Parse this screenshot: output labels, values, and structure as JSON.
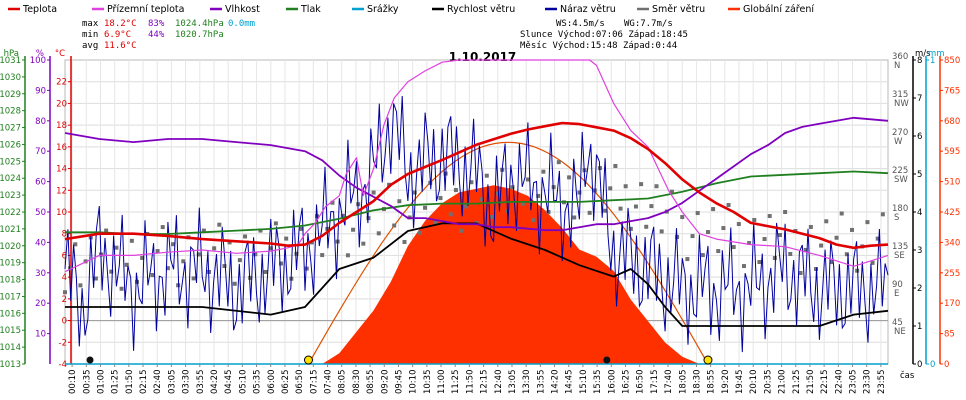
{
  "colors": {
    "temperature": "#e00000",
    "feels_like": "#e040e0",
    "humidity": "#8000c0",
    "pressure": "#208020",
    "rain": "#00a0d0",
    "wind_speed": "#000000",
    "wind_gust": "#0000a0",
    "wind_dir": "#707070",
    "solar": "#ff3000",
    "solar_curve": "#e05000"
  },
  "legend": [
    {
      "label": "Teplota",
      "color": "#e00000"
    },
    {
      "label": "Přízemní teplota",
      "color": "#e040e0"
    },
    {
      "label": "Vlhkost",
      "color": "#8000c0"
    },
    {
      "label": "Tlak",
      "color": "#208020"
    },
    {
      "label": "Srážky",
      "color": "#00a0d0"
    },
    {
      "label": "Rychlost větru",
      "color": "#000000"
    },
    {
      "label": "Náraz větru",
      "color": "#0000a0"
    },
    {
      "label": "Směr větru",
      "color": "#707070"
    },
    {
      "label": "Globální záření",
      "color": "#ff3000"
    }
  ],
  "stats": {
    "max_label": "max",
    "max_temp": "18.2°C",
    "max_hum": "83%",
    "max_press": "1024.4hPa",
    "rain_total": "0.0mm",
    "min_label": "min",
    "min_temp": "6.9°C",
    "min_hum": "44%",
    "min_press": "1020.7hPa",
    "avg_label": "avg",
    "avg_temp": "11.6°C"
  },
  "wind_info": {
    "ws": "WS:4.5m/s",
    "wg": "WG:7.7m/s"
  },
  "sun_info": "Slunce Východ:07:06  Západ:18:45",
  "moon_info": "Měsíc  Východ:15:48  Západ:0:44",
  "chart_data": {
    "type": "line",
    "title": "1.10.2017",
    "xlabel": "čas",
    "x_ticks": [
      "00:10",
      "00:35",
      "01:00",
      "01:25",
      "01:50",
      "02:15",
      "02:40",
      "03:05",
      "03:30",
      "03:55",
      "04:20",
      "04:45",
      "05:10",
      "05:35",
      "06:00",
      "06:25",
      "06:50",
      "07:15",
      "07:40",
      "08:05",
      "08:30",
      "08:55",
      "09:20",
      "09:45",
      "10:10",
      "10:35",
      "11:00",
      "11:25",
      "11:50",
      "12:15",
      "12:40",
      "13:05",
      "13:30",
      "13:55",
      "14:20",
      "14:45",
      "15:10",
      "15:35",
      "16:00",
      "16:25",
      "16:50",
      "17:15",
      "17:40",
      "18:05",
      "18:30",
      "18:55",
      "19:20",
      "19:45",
      "20:10",
      "20:35",
      "21:00",
      "21:25",
      "21:50",
      "22:15",
      "22:40",
      "23:05",
      "23:30",
      "23:55"
    ],
    "axes": {
      "pressure_hpa": {
        "label": "hPa",
        "min": 1013,
        "max": 1031,
        "ticks": [
          1013,
          1014,
          1015,
          1016,
          1017,
          1018,
          1019,
          1020,
          1021,
          1022,
          1023,
          1024,
          1025,
          1026,
          1027,
          1028,
          1029,
          1030,
          1031
        ]
      },
      "humidity_pct": {
        "label": "%",
        "min": 0,
        "max": 100,
        "ticks": [
          10,
          20,
          30,
          40,
          50,
          60,
          70,
          80,
          90,
          100
        ]
      },
      "temperature_c": {
        "label": "°C",
        "min": -4,
        "max": 24,
        "ticks": [
          -4,
          -2,
          0,
          2,
          4,
          6,
          8,
          10,
          12,
          14,
          16,
          18,
          20,
          22
        ]
      },
      "wind_dir": {
        "ticks": [
          {
            "v": 45,
            "t": "NE"
          },
          {
            "v": 90,
            "t": "E"
          },
          {
            "v": 135,
            "t": "SE"
          },
          {
            "v": 180,
            "t": "S"
          },
          {
            "v": 225,
            "t": "SW"
          },
          {
            "v": 270,
            "t": "W"
          },
          {
            "v": 315,
            "t": "NW"
          },
          {
            "v": 360,
            "t": "N"
          }
        ]
      },
      "wind_speed_ms": {
        "label": "m/s",
        "min": 0,
        "max": 8,
        "ticks": [
          0,
          1,
          2,
          3,
          4,
          5,
          6,
          7,
          8
        ]
      },
      "rain_mm": {
        "label": "mm",
        "min": 0,
        "max": 1,
        "ticks": [
          0,
          1
        ]
      },
      "solar_wm2": {
        "min": 0,
        "max": 850,
        "ticks": [
          0,
          85,
          170,
          255,
          340,
          425,
          510,
          595,
          680,
          765,
          850
        ]
      }
    },
    "series": [
      {
        "name": "Teplota",
        "unit": "°C",
        "x": [
          0,
          1,
          2,
          3,
          4,
          5,
          6,
          6.5,
          7,
          7.5,
          8,
          8.5,
          9,
          9.5,
          10,
          11,
          11.5,
          12,
          12.5,
          13,
          13.5,
          14,
          14.5,
          15,
          15.5,
          16,
          16.5,
          17,
          17.5,
          18,
          18.5,
          19,
          19.5,
          20,
          21,
          22,
          22.5,
          23,
          23.5,
          24
        ],
        "y": [
          7.5,
          8,
          8,
          7.8,
          7.5,
          7.3,
          7.1,
          6.9,
          7,
          7.8,
          9,
          10,
          11,
          12.5,
          13.5,
          14.8,
          15.5,
          16.2,
          16.7,
          17.2,
          17.6,
          17.9,
          18.2,
          18.1,
          17.8,
          17.5,
          16.8,
          15.8,
          14.5,
          13,
          11.8,
          10.8,
          10,
          9,
          8.4,
          7.6,
          7,
          6.7,
          6.9,
          7
        ]
      },
      {
        "name": "Přízemní teplota",
        "unit": "°C",
        "x": [
          0,
          1,
          2,
          3,
          4,
          5,
          6,
          6.5,
          6.8,
          7,
          7.3,
          7.6,
          8,
          8.2,
          8.5,
          8.7,
          9,
          9.3,
          9.6,
          10,
          10.5,
          11,
          11.5,
          12,
          14,
          15,
          15.3,
          15.5,
          16,
          16.5,
          17,
          17.3,
          17.6,
          18,
          18.5,
          19,
          20,
          21,
          22,
          23,
          24
        ],
        "y": [
          4.5,
          6,
          6,
          6.3,
          6.5,
          6.2,
          6.4,
          6.7,
          7,
          8,
          9,
          10.5,
          11.5,
          13.5,
          15,
          11.5,
          14,
          18,
          20.5,
          22,
          23,
          23.8,
          24,
          24,
          24,
          24,
          24,
          23.5,
          20,
          17.5,
          16,
          14,
          12,
          10,
          8,
          7.5,
          7,
          6.8,
          6,
          5,
          6
        ]
      },
      {
        "name": "Vlhkost",
        "unit": "%",
        "x": [
          0,
          1,
          2,
          3,
          4,
          5,
          6,
          7,
          7.5,
          8,
          8.5,
          9,
          9.5,
          10,
          10.5,
          11,
          11.5,
          12,
          12.5,
          13,
          14,
          14.5,
          15,
          15.5,
          16,
          16.5,
          17,
          17.5,
          18,
          18.5,
          19,
          19.5,
          20,
          20.5,
          21,
          21.5,
          22,
          23,
          24
        ],
        "y": [
          76,
          74,
          73,
          74,
          74,
          73,
          72,
          70,
          67,
          62,
          58,
          55,
          52,
          48,
          48,
          47,
          46,
          46,
          45,
          45,
          44,
          44,
          45,
          46,
          46,
          47,
          48,
          50,
          53,
          57,
          61,
          65,
          69,
          72,
          76,
          78,
          79,
          81,
          80
        ]
      },
      {
        "name": "Tlak",
        "unit": "hPa",
        "x": [
          0,
          1,
          2,
          3,
          4,
          5,
          6,
          7,
          8,
          9,
          10,
          11,
          12,
          13,
          14,
          15,
          16,
          17,
          18,
          19,
          20,
          21,
          22,
          23,
          24
        ],
        "y": [
          1020.8,
          1020.8,
          1020.7,
          1020.7,
          1020.8,
          1020.9,
          1021.0,
          1021.2,
          1021.6,
          1022.1,
          1022.4,
          1022.5,
          1022.5,
          1022.6,
          1022.6,
          1022.6,
          1022.7,
          1022.8,
          1023.2,
          1023.7,
          1024.1,
          1024.2,
          1024.3,
          1024.4,
          1024.3
        ]
      },
      {
        "name": "Srážky",
        "unit": "mm",
        "x": [
          0,
          24
        ],
        "y": [
          0,
          0
        ]
      },
      {
        "name": "Rychlost větru",
        "unit": "m/s",
        "x": [
          0,
          2,
          4,
          6,
          7,
          7.5,
          8,
          9,
          10,
          11,
          12,
          13,
          14,
          15,
          16,
          16.5,
          17,
          17.5,
          18,
          19,
          20,
          21,
          22,
          23,
          24
        ],
        "y": [
          1.5,
          1.5,
          1.5,
          1.3,
          1.5,
          2,
          2.5,
          2.8,
          3.5,
          3.7,
          3.7,
          3.3,
          3,
          2.6,
          2.3,
          2.5,
          2.1,
          1.5,
          1,
          1,
          1,
          1,
          1,
          1.3,
          1.4
        ]
      },
      {
        "name": "Náraz větru",
        "unit": "m/s",
        "x": [
          0,
          0.5,
          1,
          2,
          3,
          4,
          5,
          6,
          7,
          8,
          9,
          9.5,
          10,
          11,
          12,
          12.5,
          13,
          14,
          15,
          15.2,
          16,
          17,
          18,
          19,
          20,
          21,
          22,
          23,
          24
        ],
        "y": [
          2.5,
          1.5,
          3,
          2,
          2.5,
          2.5,
          2,
          2.5,
          3,
          4,
          5,
          6.5,
          5,
          5.5,
          5,
          4,
          5,
          4.5,
          4,
          6,
          3,
          2.5,
          2,
          2,
          2,
          2.5,
          2,
          2,
          2
        ]
      },
      {
        "name": "Směr větru",
        "unit": "°",
        "x": [
          0,
          2,
          4,
          6,
          7,
          8,
          9,
          10,
          11,
          12,
          13,
          14,
          15,
          16,
          17,
          18,
          19,
          20,
          21,
          22,
          23,
          24
        ],
        "y": [
          120,
          125,
          130,
          130,
          140,
          160,
          175,
          180,
          190,
          195,
          195,
          200,
          210,
          200,
          190,
          160,
          155,
          150,
          145,
          140,
          145,
          150
        ]
      },
      {
        "name": "Globální záření",
        "unit": "W/m2",
        "x": [
          7.5,
          8,
          8.5,
          9,
          9.5,
          10,
          10.5,
          11,
          11.5,
          12,
          12.5,
          13,
          13.5,
          14,
          14.5,
          15,
          15.5,
          16,
          16.5,
          17,
          17.5,
          18,
          18.5
        ],
        "y": [
          0,
          30,
          90,
          150,
          230,
          330,
          400,
          450,
          480,
          490,
          500,
          490,
          470,
          430,
          380,
          320,
          300,
          260,
          180,
          120,
          60,
          20,
          0
        ]
      }
    ]
  }
}
